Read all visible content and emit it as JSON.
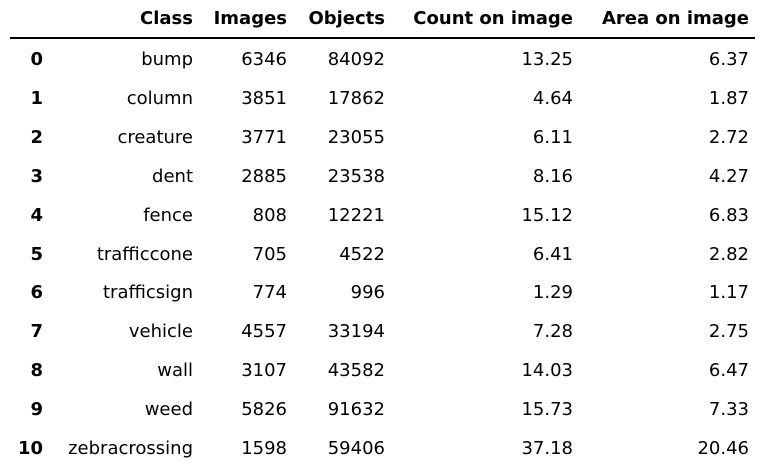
{
  "table": {
    "headers": {
      "index": "",
      "class": "Class",
      "images": "Images",
      "objects": "Objects",
      "count_on_image": "Count on image",
      "area_on_image": "Area on image"
    },
    "rows": [
      {
        "index": "0",
        "class": "bump",
        "images": "6346",
        "objects": "84092",
        "count_on_image": "13.25",
        "area_on_image": "6.37"
      },
      {
        "index": "1",
        "class": "column",
        "images": "3851",
        "objects": "17862",
        "count_on_image": "4.64",
        "area_on_image": "1.87"
      },
      {
        "index": "2",
        "class": "creature",
        "images": "3771",
        "objects": "23055",
        "count_on_image": "6.11",
        "area_on_image": "2.72"
      },
      {
        "index": "3",
        "class": "dent",
        "images": "2885",
        "objects": "23538",
        "count_on_image": "8.16",
        "area_on_image": "4.27"
      },
      {
        "index": "4",
        "class": "fence",
        "images": "808",
        "objects": "12221",
        "count_on_image": "15.12",
        "area_on_image": "6.83"
      },
      {
        "index": "5",
        "class": "trafficcone",
        "images": "705",
        "objects": "4522",
        "count_on_image": "6.41",
        "area_on_image": "2.82"
      },
      {
        "index": "6",
        "class": "trafficsign",
        "images": "774",
        "objects": "996",
        "count_on_image": "1.29",
        "area_on_image": "1.17"
      },
      {
        "index": "7",
        "class": "vehicle",
        "images": "4557",
        "objects": "33194",
        "count_on_image": "7.28",
        "area_on_image": "2.75"
      },
      {
        "index": "8",
        "class": "wall",
        "images": "3107",
        "objects": "43582",
        "count_on_image": "14.03",
        "area_on_image": "6.47"
      },
      {
        "index": "9",
        "class": "weed",
        "images": "5826",
        "objects": "91632",
        "count_on_image": "15.73",
        "area_on_image": "7.33"
      },
      {
        "index": "10",
        "class": "zebracrossing",
        "images": "1598",
        "objects": "59406",
        "count_on_image": "37.18",
        "area_on_image": "20.46"
      }
    ]
  }
}
